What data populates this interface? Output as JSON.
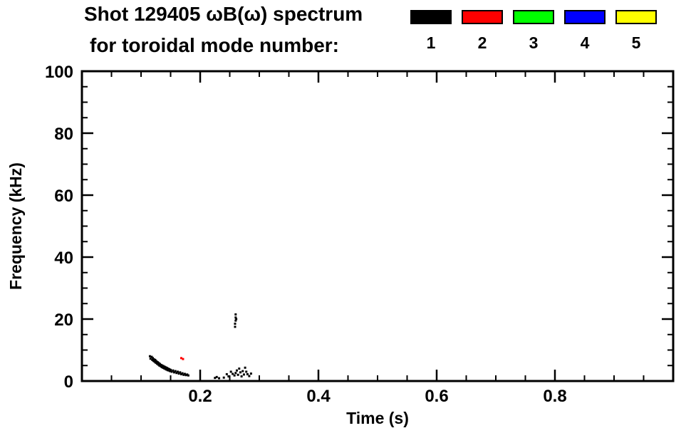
{
  "title": {
    "line1": "Shot 129405 ωB(ω) spectrum",
    "line2": "for toroidal mode number:"
  },
  "legend": {
    "position": "top-right",
    "entries": [
      {
        "label": "1",
        "color": "#000000"
      },
      {
        "label": "2",
        "color": "#ff0000"
      },
      {
        "label": "3",
        "color": "#00ff00"
      },
      {
        "label": "4",
        "color": "#0000ff"
      },
      {
        "label": "5",
        "color": "#ffff00"
      }
    ]
  },
  "chart_data": {
    "type": "scatter",
    "title": "Shot 129405 ωB(ω) spectrum for toroidal mode number: 1 2 3 4 5",
    "xlabel": "Time (s)",
    "ylabel": "Frequency (kHz)",
    "xlim": [
      0,
      1.0
    ],
    "ylim": [
      0,
      100
    ],
    "grid": false,
    "x_ticks": [
      {
        "value": 0.2,
        "label": "0.2"
      },
      {
        "value": 0.4,
        "label": "0.4"
      },
      {
        "value": 0.6,
        "label": "0.6"
      },
      {
        "value": 0.8,
        "label": "0.8"
      }
    ],
    "x_minor_interval": 0.05,
    "y_ticks": [
      {
        "value": 0,
        "label": "0"
      },
      {
        "value": 20,
        "label": "20"
      },
      {
        "value": 40,
        "label": "40"
      },
      {
        "value": 60,
        "label": "60"
      },
      {
        "value": 80,
        "label": "80"
      },
      {
        "value": 100,
        "label": "100"
      }
    ],
    "y_minor_interval": 5,
    "series": [
      {
        "name": "n=1",
        "color": "#000000",
        "points": [
          [
            0.115,
            8.0
          ],
          [
            0.116,
            7.2
          ],
          [
            0.118,
            7.8
          ],
          [
            0.119,
            6.8
          ],
          [
            0.12,
            7.4
          ],
          [
            0.121,
            6.5
          ],
          [
            0.122,
            7.0
          ],
          [
            0.123,
            6.2
          ],
          [
            0.124,
            6.8
          ],
          [
            0.125,
            5.9
          ],
          [
            0.126,
            6.4
          ],
          [
            0.127,
            5.6
          ],
          [
            0.128,
            6.1
          ],
          [
            0.129,
            5.3
          ],
          [
            0.13,
            5.8
          ],
          [
            0.131,
            5.0
          ],
          [
            0.132,
            5.5
          ],
          [
            0.133,
            4.8
          ],
          [
            0.134,
            5.2
          ],
          [
            0.135,
            4.5
          ],
          [
            0.136,
            5.0
          ],
          [
            0.137,
            4.3
          ],
          [
            0.138,
            4.8
          ],
          [
            0.139,
            4.1
          ],
          [
            0.14,
            4.6
          ],
          [
            0.141,
            3.9
          ],
          [
            0.142,
            4.4
          ],
          [
            0.143,
            3.7
          ],
          [
            0.144,
            4.2
          ],
          [
            0.145,
            3.5
          ],
          [
            0.146,
            4.0
          ],
          [
            0.147,
            3.4
          ],
          [
            0.148,
            3.8
          ],
          [
            0.149,
            3.2
          ],
          [
            0.15,
            3.6
          ],
          [
            0.152,
            3.0
          ],
          [
            0.154,
            3.4
          ],
          [
            0.156,
            2.8
          ],
          [
            0.158,
            3.2
          ],
          [
            0.16,
            2.6
          ],
          [
            0.162,
            3.0
          ],
          [
            0.164,
            2.4
          ],
          [
            0.166,
            2.8
          ],
          [
            0.168,
            2.2
          ],
          [
            0.17,
            2.5
          ],
          [
            0.172,
            2.0
          ],
          [
            0.174,
            2.3
          ],
          [
            0.176,
            1.9
          ],
          [
            0.178,
            2.1
          ],
          [
            0.18,
            1.8
          ],
          [
            0.225,
            1.0
          ],
          [
            0.228,
            1.3
          ],
          [
            0.232,
            0.9
          ],
          [
            0.24,
            1.1
          ],
          [
            0.245,
            2.2
          ],
          [
            0.248,
            1.5
          ],
          [
            0.252,
            3.0
          ],
          [
            0.255,
            2.3
          ],
          [
            0.258,
            1.8
          ],
          [
            0.26,
            2.6
          ],
          [
            0.262,
            3.4
          ],
          [
            0.264,
            2.0
          ],
          [
            0.266,
            4.0
          ],
          [
            0.268,
            2.8
          ],
          [
            0.27,
            1.5
          ],
          [
            0.272,
            3.2
          ],
          [
            0.274,
            2.1
          ],
          [
            0.276,
            4.3
          ],
          [
            0.278,
            3.0
          ],
          [
            0.28,
            2.2
          ],
          [
            0.283,
            1.6
          ],
          [
            0.286,
            2.4
          ],
          [
            0.259,
            17.5
          ],
          [
            0.259,
            18.5
          ],
          [
            0.26,
            19.5
          ],
          [
            0.26,
            20.5
          ],
          [
            0.26,
            21.5
          ],
          [
            0.261,
            20.0
          ]
        ]
      },
      {
        "name": "n=2",
        "color": "#ff0000",
        "points": [
          [
            0.168,
            7.4
          ],
          [
            0.171,
            7.1
          ]
        ]
      }
    ]
  }
}
